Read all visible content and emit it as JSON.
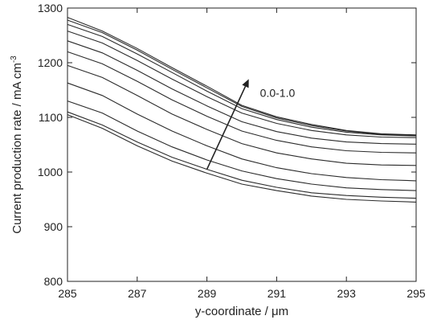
{
  "chart_data": {
    "type": "line",
    "title": "",
    "xlabel": "y-coordinate / μm",
    "ylabel": "Current production rate / mA cm",
    "ylabel_superscript": "-3",
    "xlim": [
      285,
      295
    ],
    "ylim": [
      800,
      1300
    ],
    "x_ticks": [
      285,
      287,
      289,
      291,
      293,
      295
    ],
    "y_ticks": [
      800,
      900,
      1000,
      1100,
      1200,
      1300
    ],
    "grid": false,
    "legend": "none",
    "line_color": "#2b2b2b",
    "annotation": {
      "text": "0.0-1.0",
      "arrow_from": [
        289,
        1005
      ],
      "arrow_to": [
        290.2,
        1170
      ]
    },
    "x": [
      285,
      286,
      287,
      288,
      289,
      290,
      291,
      292,
      293,
      294,
      295
    ],
    "series": [
      {
        "values": [
          1105,
          1080,
          1048,
          1020,
          998,
          978,
          966,
          956,
          950,
          947,
          945
        ]
      },
      {
        "values": [
          1110,
          1086,
          1055,
          1027,
          1005,
          985,
          972,
          962,
          957,
          954,
          952
        ]
      },
      {
        "values": [
          1130,
          1108,
          1075,
          1046,
          1022,
          1002,
          988,
          978,
          971,
          968,
          966
        ]
      },
      {
        "values": [
          1163,
          1140,
          1106,
          1075,
          1048,
          1024,
          1008,
          997,
          990,
          986,
          984
        ]
      },
      {
        "values": [
          1195,
          1173,
          1140,
          1106,
          1078,
          1052,
          1035,
          1024,
          1016,
          1013,
          1012
        ]
      },
      {
        "values": [
          1220,
          1198,
          1166,
          1132,
          1102,
          1075,
          1058,
          1046,
          1039,
          1036,
          1035
        ]
      },
      {
        "values": [
          1240,
          1218,
          1186,
          1152,
          1121,
          1092,
          1074,
          1062,
          1055,
          1052,
          1051
        ]
      },
      {
        "values": [
          1258,
          1236,
          1204,
          1170,
          1138,
          1108,
          1089,
          1076,
          1068,
          1064,
          1063
        ]
      },
      {
        "values": [
          1270,
          1248,
          1216,
          1182,
          1148,
          1116,
          1096,
          1082,
          1073,
          1068,
          1066
        ]
      },
      {
        "values": [
          1278,
          1255,
          1223,
          1188,
          1154,
          1120,
          1099,
          1085,
          1075,
          1069,
          1067
        ]
      },
      {
        "values": [
          1283,
          1258,
          1226,
          1191,
          1157,
          1122,
          1101,
          1087,
          1076,
          1070,
          1068
        ]
      }
    ]
  }
}
